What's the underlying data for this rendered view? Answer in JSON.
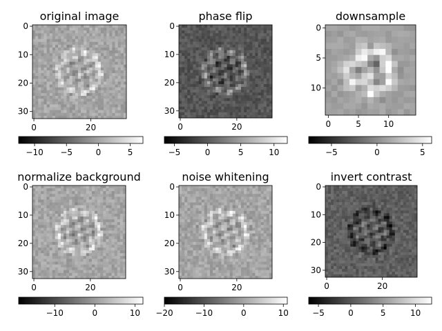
{
  "chart_data": [
    {
      "type": "heatmap",
      "title": "original image",
      "grid_size": 33,
      "x_ticks": [
        0,
        20
      ],
      "y_ticks": [
        0,
        10,
        20,
        30
      ],
      "colormap": "gray",
      "colorbar": {
        "min": -12.5,
        "max": 7,
        "ticks": [
          -10,
          -5,
          0,
          5
        ]
      }
    },
    {
      "type": "heatmap",
      "title": "phase flip",
      "grid_size": 33,
      "x_ticks": [
        0,
        20
      ],
      "y_ticks": [
        0,
        10,
        20,
        30
      ],
      "colormap": "gray",
      "colorbar": {
        "min": -6.5,
        "max": 12,
        "ticks": [
          -5,
          0,
          5,
          10
        ]
      }
    },
    {
      "type": "heatmap",
      "title": "downsample",
      "grid_size": 15,
      "x_ticks": [
        0,
        5,
        10
      ],
      "y_ticks": [
        0,
        5,
        10
      ],
      "colormap": "gray",
      "colorbar": {
        "min": -7.5,
        "max": 6,
        "ticks": [
          -5,
          0,
          5
        ]
      }
    },
    {
      "type": "heatmap",
      "title": "normalize background",
      "grid_size": 33,
      "x_ticks": [
        0,
        20
      ],
      "y_ticks": [
        0,
        10,
        20,
        30
      ],
      "colormap": "gray",
      "colorbar": {
        "min": -19,
        "max": 12,
        "ticks": [
          -10,
          0,
          10
        ]
      }
    },
    {
      "type": "heatmap",
      "title": "noise whitening",
      "grid_size": 33,
      "x_ticks": [
        0,
        20
      ],
      "y_ticks": [
        0,
        10,
        20,
        30
      ],
      "colormap": "gray",
      "colorbar": {
        "min": -20,
        "max": 11,
        "ticks": [
          -20,
          -10,
          0,
          10
        ]
      }
    },
    {
      "type": "heatmap",
      "title": "invert contrast",
      "grid_size": 33,
      "x_ticks": [
        0,
        20
      ],
      "y_ticks": [
        0,
        10,
        20,
        30
      ],
      "colormap": "gray",
      "colorbar": {
        "min": -6.5,
        "max": 12.5,
        "ticks": [
          -5,
          0,
          5,
          10
        ]
      }
    }
  ]
}
